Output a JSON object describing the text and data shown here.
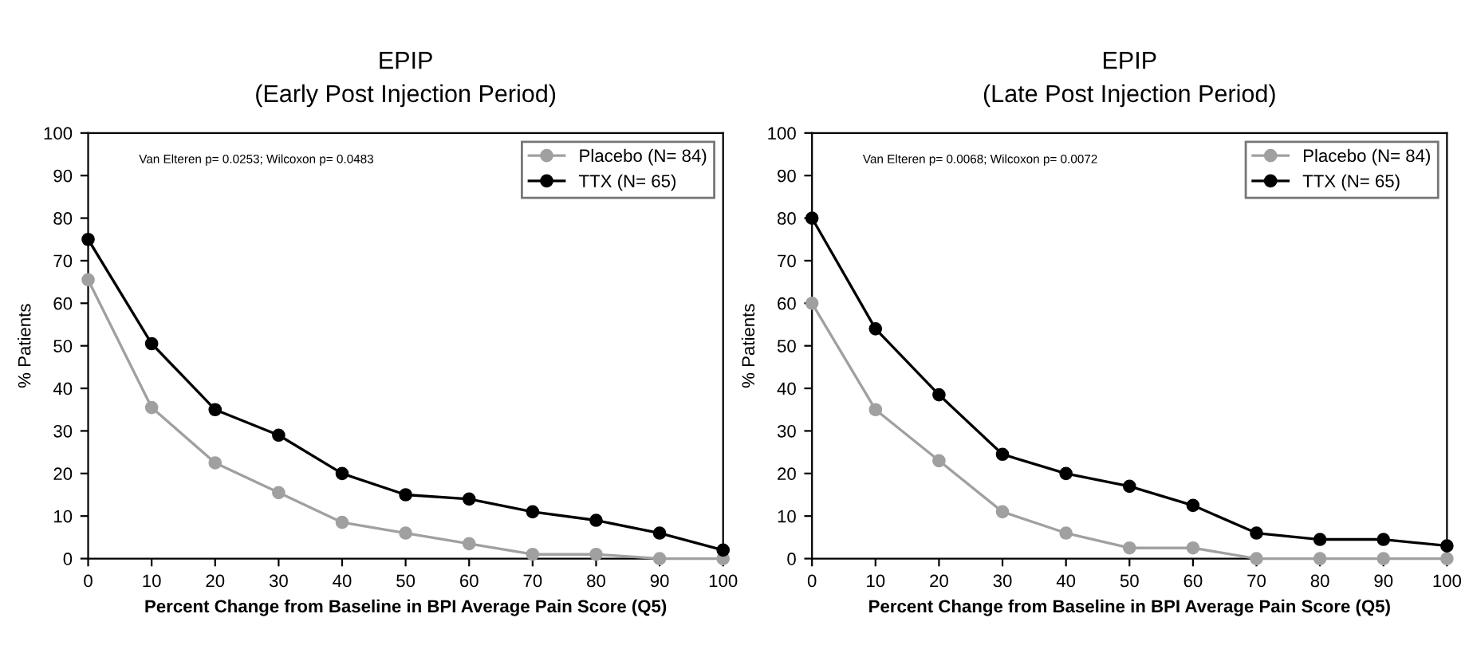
{
  "chart_data": [
    {
      "type": "line",
      "title": "EPIP",
      "subtitle": "(Early Post Injection Period)",
      "xlabel": "Percent Change from Baseline in BPI Average Pain Score (Q5)",
      "ylabel": "% Patients",
      "annotations": [
        "Van Elteren p= 0.0253; Wilcoxon p= 0.0483"
      ],
      "x": [
        0,
        10,
        20,
        30,
        40,
        50,
        60,
        70,
        80,
        90,
        100
      ],
      "series": [
        {
          "name": "Placebo (N= 84)",
          "color": "#a0a0a0",
          "values": [
            65.5,
            35.5,
            22.5,
            15.5,
            8.5,
            6,
            3.5,
            1,
            1,
            0,
            0
          ]
        },
        {
          "name": "TTX (N= 65)",
          "color": "#000000",
          "values": [
            75,
            50.5,
            35,
            29,
            20,
            15,
            14,
            11,
            9,
            6,
            2
          ]
        }
      ],
      "xlim": [
        0,
        100
      ],
      "xticks": [
        0,
        10,
        20,
        30,
        40,
        50,
        60,
        70,
        80,
        90,
        100
      ],
      "ylim": [
        0,
        100
      ],
      "yticks": [
        0,
        10,
        20,
        30,
        40,
        50,
        60,
        70,
        80,
        90,
        100
      ],
      "legend": "top right",
      "marker": "circle",
      "grid": false
    },
    {
      "type": "line",
      "title": "EPIP",
      "subtitle": "(Late Post Injection Period)",
      "xlabel": "Percent Change from Baseline in BPI Average Pain Score (Q5)",
      "ylabel": "% Patients",
      "annotations": [
        "Van Elteren p= 0.0068; Wilcoxon p= 0.0072"
      ],
      "x": [
        0,
        10,
        20,
        30,
        40,
        50,
        60,
        70,
        80,
        90,
        100
      ],
      "series": [
        {
          "name": "Placebo (N= 84)",
          "color": "#a0a0a0",
          "values": [
            60,
            35,
            23,
            11,
            6,
            2.5,
            2.5,
            0,
            0,
            0,
            0
          ]
        },
        {
          "name": "TTX (N= 65)",
          "color": "#000000",
          "values": [
            80,
            54,
            38.5,
            24.5,
            20,
            17,
            12.5,
            6,
            4.5,
            4.5,
            3
          ]
        }
      ],
      "xlim": [
        0,
        100
      ],
      "xticks": [
        0,
        10,
        20,
        30,
        40,
        50,
        60,
        70,
        80,
        90,
        100
      ],
      "ylim": [
        0,
        100
      ],
      "yticks": [
        0,
        10,
        20,
        30,
        40,
        50,
        60,
        70,
        80,
        90,
        100
      ],
      "legend": "top right",
      "marker": "circle",
      "grid": false
    }
  ]
}
